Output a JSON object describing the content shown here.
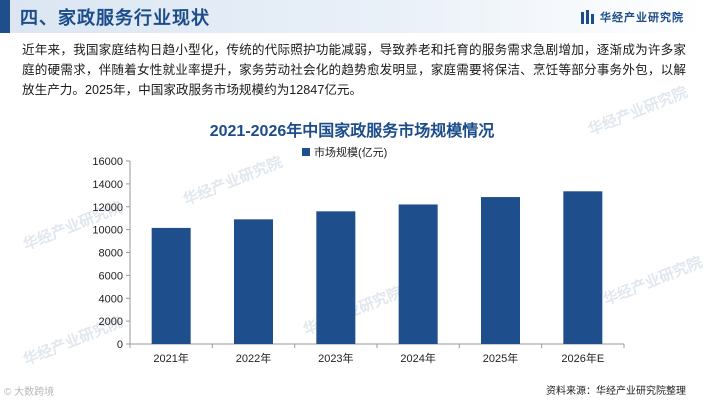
{
  "header": {
    "title": "四、家政服务行业现状",
    "logo_text": "华经产业研究院",
    "logo_icon": "bars-logo-icon"
  },
  "intro_text": "近年来，我国家庭结构日趋小型化，传统的代际照护功能减弱，导致养老和托育的服务需求急剧增加，逐渐成为许多家庭的硬需求，伴随着女性就业率提升，家务劳动社会化的趋势愈发明显，家庭需要将保洁、烹饪等部分事务外包，以解放生产力。2025年，中国家政服务市场规模约为12847亿元。",
  "watermark_text": "华经产业研究院",
  "corner_mark": "© 大数跨境",
  "source": "资料来源：华经产业研究院整理",
  "colors": {
    "accent": "#1c4c8a",
    "bar": "#1f4e8c",
    "title_band": "#dbe6f3"
  },
  "chart_data": {
    "type": "bar",
    "title": "2021-2026年中国家政服务市场规模情况",
    "categories": [
      "2021年",
      "2022年",
      "2023年",
      "2024年",
      "2025年",
      "2026年E"
    ],
    "series": [
      {
        "name": "市场规模(亿元)",
        "values": [
          10150,
          10900,
          11600,
          12200,
          12847,
          13350
        ]
      }
    ],
    "yticks": [
      "0",
      "2000",
      "4000",
      "6000",
      "8000",
      "10000",
      "12000",
      "14000",
      "16000"
    ],
    "ylim": [
      0,
      16000
    ],
    "legend_position": "top-center",
    "grid": false
  }
}
